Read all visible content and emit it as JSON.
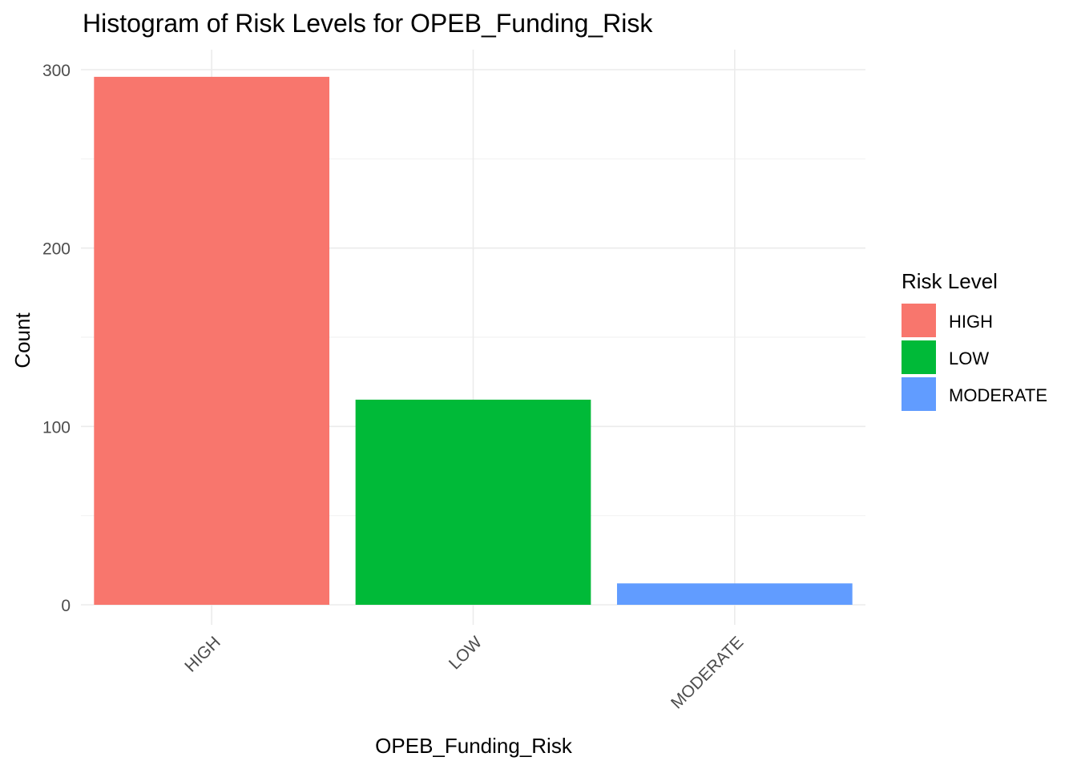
{
  "chart_data": {
    "type": "bar",
    "title": "Histogram of Risk Levels for OPEB_Funding_Risk",
    "xlabel": "OPEB_Funding_Risk",
    "ylabel": "Count",
    "categories": [
      "HIGH",
      "LOW",
      "MODERATE"
    ],
    "values": [
      296,
      115,
      12
    ],
    "colors": [
      "#F8766D",
      "#00BA38",
      "#619CFF"
    ],
    "ylim": [
      0,
      310
    ],
    "yticks": [
      0,
      100,
      200,
      300
    ],
    "grid": true,
    "legend": {
      "title": "Risk Level",
      "placement": "right",
      "entries": [
        "HIGH",
        "LOW",
        "MODERATE"
      ]
    }
  }
}
